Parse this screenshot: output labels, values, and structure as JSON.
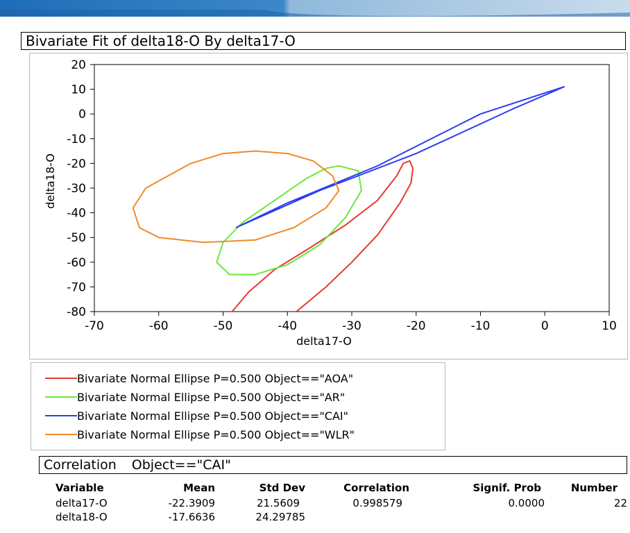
{
  "colors": {
    "banner": "#1e6db8",
    "AOA": "#e53a2e",
    "AR": "#6be83a",
    "CAI": "#2b3df0",
    "WLR": "#f08a2a"
  },
  "panel_title": "Bivariate Fit of delta18-O By delta17-O",
  "chart_data": {
    "type": "scatter",
    "title": "",
    "xlabel": "delta17-O",
    "ylabel": "delta18-O",
    "xlim": [
      -70,
      10
    ],
    "ylim": [
      -80,
      20
    ],
    "x_ticks": [
      -70,
      -60,
      -50,
      -40,
      -30,
      -20,
      -10,
      0,
      10
    ],
    "y_ticks": [
      20,
      10,
      0,
      -10,
      -20,
      -30,
      -40,
      -50,
      -60,
      -70,
      -80
    ],
    "grid": false,
    "series": [
      {
        "name": "Bivariate Normal Ellipse P=0.500  Object==\"AOA\"",
        "key": "AOA",
        "color": "#e53a2e",
        "points": [
          [
            -48.6,
            -80
          ],
          [
            -46,
            -72
          ],
          [
            -42,
            -63
          ],
          [
            -37,
            -55
          ],
          [
            -31,
            -45
          ],
          [
            -26,
            -35
          ],
          [
            -23,
            -25
          ],
          [
            -22,
            -20
          ],
          [
            -21,
            -19
          ],
          [
            -20.5,
            -22
          ],
          [
            -20.8,
            -28
          ],
          [
            -22.5,
            -36
          ],
          [
            -26,
            -49
          ],
          [
            -30,
            -60
          ],
          [
            -34,
            -70
          ],
          [
            -38.6,
            -80
          ]
        ]
      },
      {
        "name": "Bivariate Normal Ellipse P=0.500  Object==\"AR\"",
        "key": "AR",
        "color": "#6be83a",
        "points": [
          [
            -32,
            -21
          ],
          [
            -29,
            -23
          ],
          [
            -28.5,
            -31
          ],
          [
            -31,
            -42
          ],
          [
            -35,
            -53
          ],
          [
            -40,
            -61
          ],
          [
            -45,
            -65
          ],
          [
            -49,
            -65
          ],
          [
            -51,
            -60
          ],
          [
            -50,
            -52
          ],
          [
            -47,
            -44
          ],
          [
            -42,
            -35
          ],
          [
            -37,
            -26
          ],
          [
            -34,
            -22
          ],
          [
            -32,
            -21
          ]
        ]
      },
      {
        "name": "Bivariate Normal Ellipse P=0.500  Object==\"CAI\"",
        "key": "CAI",
        "color": "#2b3df0",
        "points": [
          [
            -48,
            -46
          ],
          [
            -35,
            -31
          ],
          [
            -20,
            -16
          ],
          [
            -5,
            2
          ],
          [
            3,
            11
          ],
          [
            -10,
            0
          ],
          [
            -26,
            -21
          ],
          [
            -40,
            -36
          ],
          [
            -48,
            -46
          ]
        ]
      },
      {
        "name": "Bivariate Normal Ellipse P=0.500  Object==\"WLR\"",
        "key": "WLR",
        "color": "#f08a2a",
        "points": [
          [
            -45,
            -15
          ],
          [
            -40,
            -16
          ],
          [
            -36,
            -19
          ],
          [
            -33,
            -25
          ],
          [
            -32,
            -31
          ],
          [
            -34,
            -38
          ],
          [
            -39,
            -46
          ],
          [
            -45,
            -51
          ],
          [
            -53,
            -52
          ],
          [
            -60,
            -50
          ],
          [
            -63,
            -46
          ],
          [
            -64,
            -38
          ],
          [
            -62,
            -30
          ],
          [
            -55,
            -20
          ],
          [
            -50,
            -16
          ],
          [
            -45,
            -15
          ]
        ]
      }
    ]
  },
  "legend": [
    {
      "key": "AOA",
      "text": "Bivariate Normal Ellipse P=0.500  Object==\"AOA\""
    },
    {
      "key": "AR",
      "text": "Bivariate Normal Ellipse P=0.500  Object==\"AR\""
    },
    {
      "key": "CAI",
      "text": "Bivariate Normal Ellipse P=0.500  Object==\"CAI\""
    },
    {
      "key": "WLR",
      "text": "Bivariate Normal Ellipse P=0.500  Object==\"WLR\""
    }
  ],
  "correlation": {
    "title": "Correlation",
    "object": "Object==\"CAI\"",
    "headers": {
      "variable": "Variable",
      "mean": "Mean",
      "stddev": "Std Dev",
      "corr": "Correlation",
      "prob": "Signif. Prob",
      "number": "Number"
    },
    "rows": [
      {
        "variable": "delta17-O",
        "mean": "-22.3909",
        "stddev": "21.5609",
        "corr": "0.998579",
        "prob": "0.0000",
        "number": "22"
      },
      {
        "variable": "delta18-O",
        "mean": "-17.6636",
        "stddev": "24.29785",
        "corr": "",
        "prob": "",
        "number": ""
      }
    ]
  }
}
